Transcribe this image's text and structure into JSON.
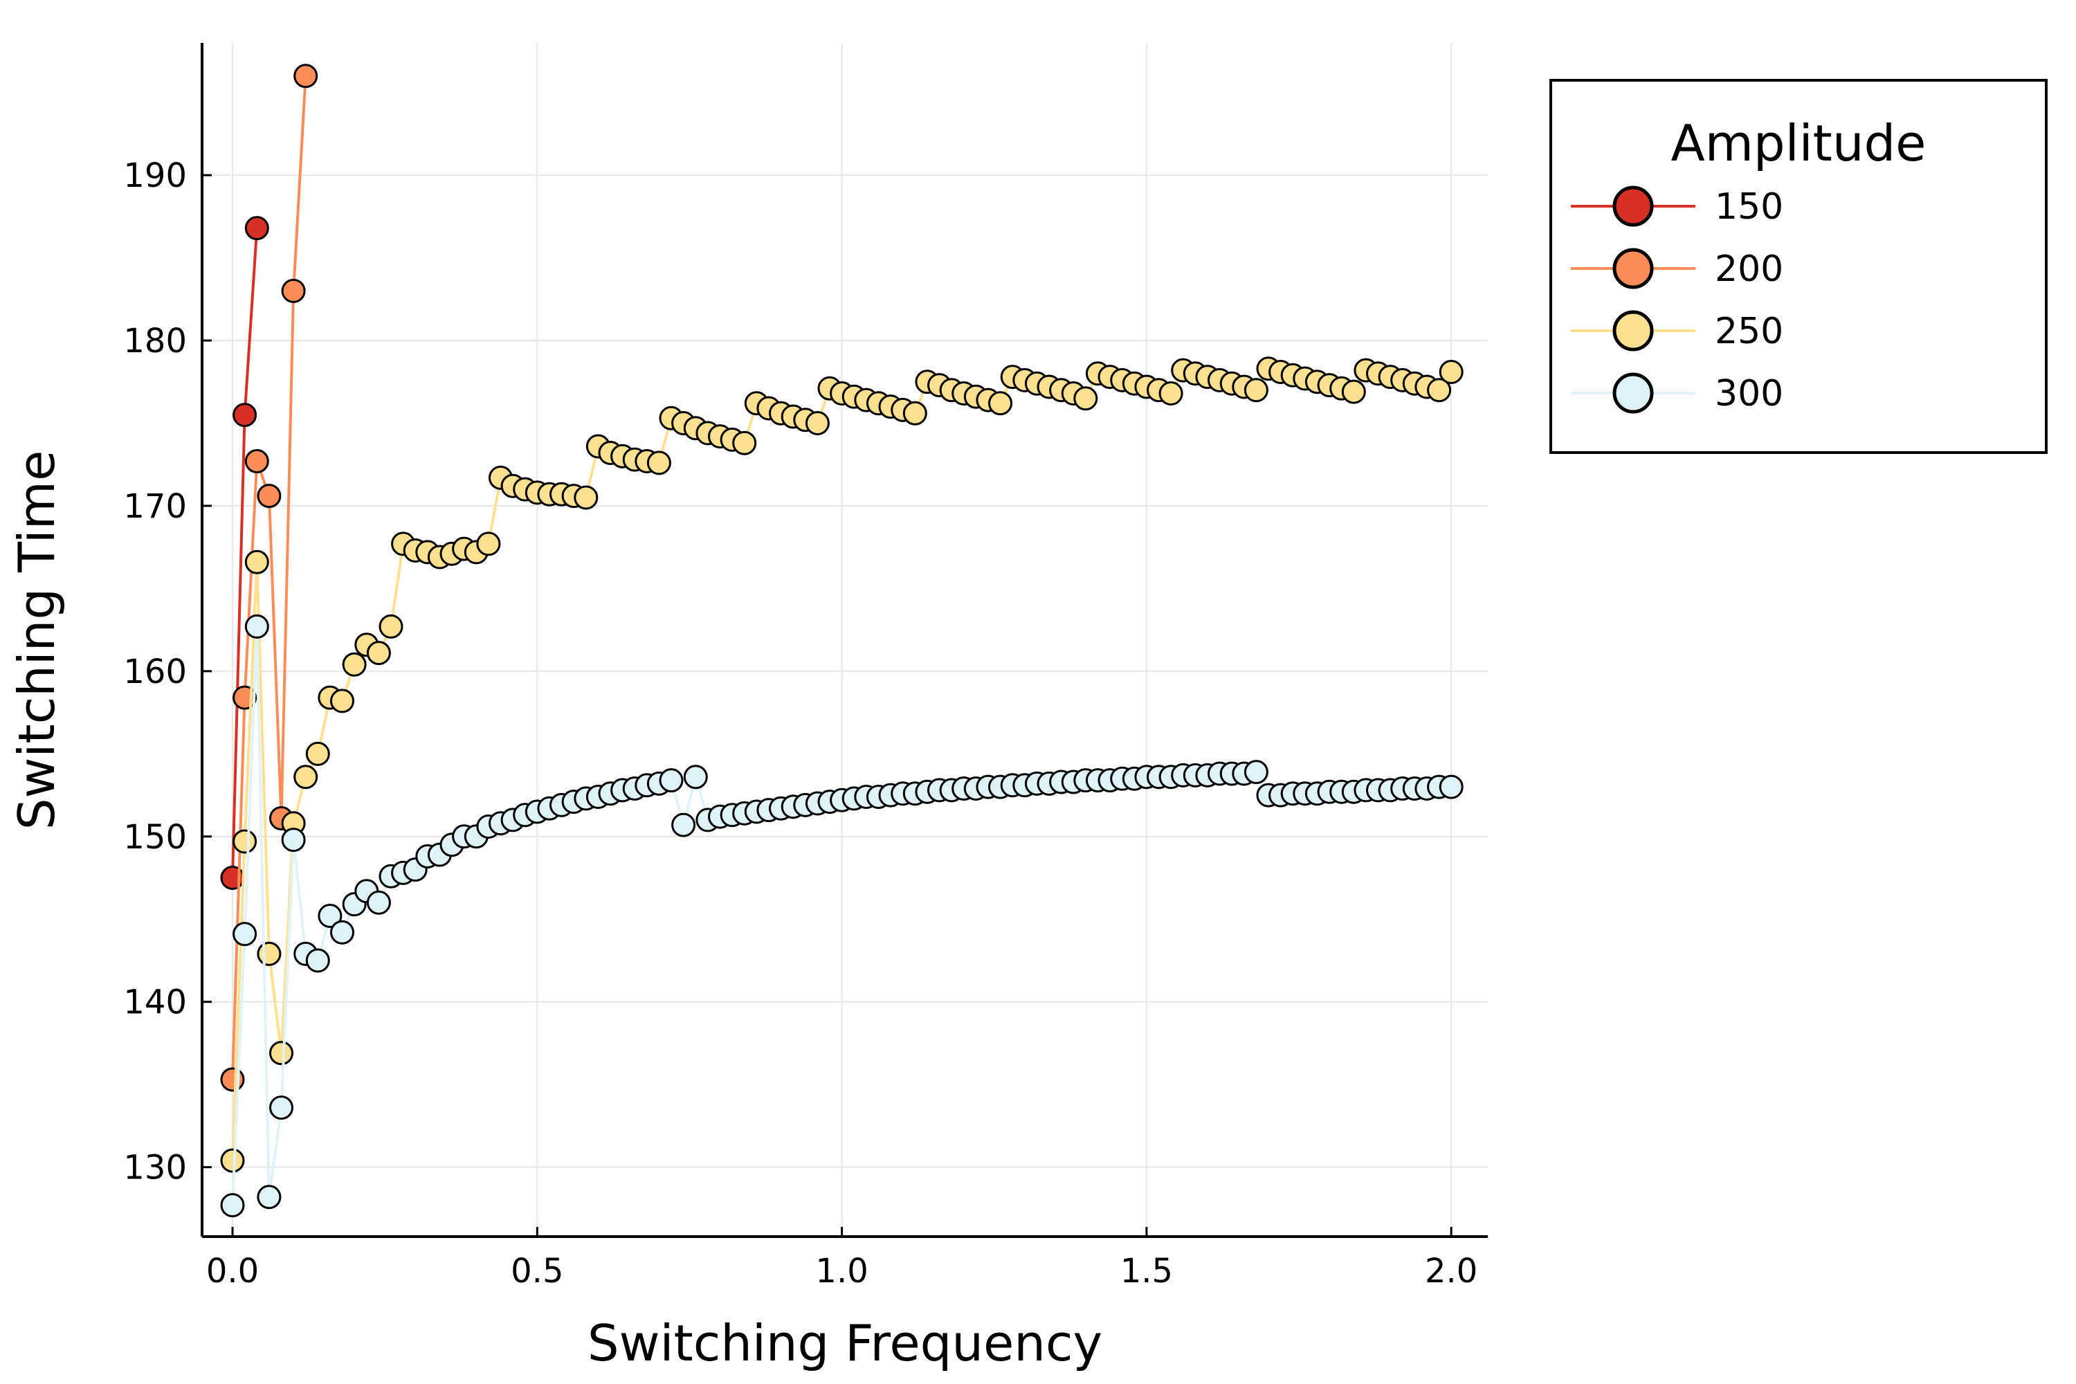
{
  "chart_data": {
    "type": "scatter",
    "xlabel": "Switching Frequency",
    "ylabel": "Switching Time",
    "xlim": [
      -0.05,
      2.06
    ],
    "ylim": [
      125.8,
      198
    ],
    "xticks": [
      0.0,
      0.5,
      1.0,
      1.5,
      2.0
    ],
    "xtick_labels": [
      "0.0",
      "0.5",
      "1.0",
      "1.5",
      "2.0"
    ],
    "yticks": [
      130,
      140,
      150,
      160,
      170,
      180,
      190
    ],
    "ytick_labels": [
      "130",
      "140",
      "150",
      "160",
      "170",
      "180",
      "190"
    ],
    "grid": true,
    "legend": {
      "title": "Amplitude",
      "placement": "outside-top-right"
    },
    "series": [
      {
        "name": "150",
        "color": "#d73027",
        "x": [
          0.0,
          0.02,
          0.04
        ],
        "y": [
          147.5,
          175.5,
          186.8
        ]
      },
      {
        "name": "200",
        "color": "#fc8d59",
        "x": [
          0.0,
          0.02,
          0.04,
          0.06,
          0.08,
          0.1,
          0.12
        ],
        "y": [
          135.3,
          158.4,
          172.7,
          170.6,
          151.1,
          183.0,
          196.0
        ]
      },
      {
        "name": "250",
        "color": "#fee090",
        "x": [
          0.0,
          0.02,
          0.04,
          0.06,
          0.08,
          0.1,
          0.12,
          0.14,
          0.16,
          0.18,
          0.2,
          0.22,
          0.24,
          0.26,
          0.28,
          0.3,
          0.32,
          0.34,
          0.36,
          0.38,
          0.4,
          0.42,
          0.44,
          0.46,
          0.48,
          0.5,
          0.52,
          0.54,
          0.56,
          0.58,
          0.6,
          0.62,
          0.64,
          0.66,
          0.68,
          0.7,
          0.72,
          0.74,
          0.76,
          0.78,
          0.8,
          0.82,
          0.84,
          0.86,
          0.88,
          0.9,
          0.92,
          0.94,
          0.96,
          0.98,
          1.0,
          1.02,
          1.04,
          1.06,
          1.08,
          1.1,
          1.12,
          1.14,
          1.16,
          1.18,
          1.2,
          1.22,
          1.24,
          1.26,
          1.28,
          1.3,
          1.32,
          1.34,
          1.36,
          1.38,
          1.4,
          1.42,
          1.44,
          1.46,
          1.48,
          1.5,
          1.52,
          1.54,
          1.56,
          1.58,
          1.6,
          1.62,
          1.64,
          1.66,
          1.68,
          1.7,
          1.72,
          1.74,
          1.76,
          1.78,
          1.8,
          1.82,
          1.84,
          1.86,
          1.88,
          1.9,
          1.92,
          1.94,
          1.96,
          1.98,
          2.0
        ],
        "y": [
          130.4,
          149.7,
          166.6,
          142.9,
          136.9,
          150.8,
          153.6,
          155.0,
          158.4,
          158.2,
          160.4,
          161.6,
          161.1,
          162.7,
          167.7,
          167.3,
          167.2,
          166.9,
          167.1,
          167.4,
          167.2,
          167.7,
          171.7,
          171.2,
          171.0,
          170.8,
          170.7,
          170.7,
          170.6,
          170.5,
          173.6,
          173.2,
          173.0,
          172.8,
          172.7,
          172.6,
          175.3,
          175.0,
          174.7,
          174.4,
          174.2,
          174.0,
          173.8,
          176.2,
          175.9,
          175.6,
          175.4,
          175.2,
          175.0,
          177.1,
          176.8,
          176.6,
          176.4,
          176.2,
          176.0,
          175.8,
          175.6,
          177.5,
          177.3,
          177.0,
          176.8,
          176.6,
          176.4,
          176.2,
          177.8,
          177.6,
          177.4,
          177.2,
          177.0,
          176.8,
          176.5,
          178.0,
          177.8,
          177.6,
          177.4,
          177.2,
          177.0,
          176.8,
          178.2,
          178.0,
          177.8,
          177.6,
          177.4,
          177.2,
          177.0,
          178.3,
          178.1,
          177.9,
          177.7,
          177.5,
          177.3,
          177.1,
          176.9,
          178.2,
          178.0,
          177.8,
          177.6,
          177.4,
          177.2,
          177.0,
          178.1
        ]
      },
      {
        "name": "300",
        "color": "#e0f3f8",
        "x": [
          0.0,
          0.02,
          0.04,
          0.06,
          0.08,
          0.1,
          0.12,
          0.14,
          0.16,
          0.18,
          0.2,
          0.22,
          0.24,
          0.26,
          0.28,
          0.3,
          0.32,
          0.34,
          0.36,
          0.38,
          0.4,
          0.42,
          0.44,
          0.46,
          0.48,
          0.5,
          0.52,
          0.54,
          0.56,
          0.58,
          0.6,
          0.62,
          0.64,
          0.66,
          0.68,
          0.7,
          0.72,
          0.74,
          0.76,
          0.78,
          0.8,
          0.82,
          0.84,
          0.86,
          0.88,
          0.9,
          0.92,
          0.94,
          0.96,
          0.98,
          1.0,
          1.02,
          1.04,
          1.06,
          1.08,
          1.1,
          1.12,
          1.14,
          1.16,
          1.18,
          1.2,
          1.22,
          1.24,
          1.26,
          1.28,
          1.3,
          1.32,
          1.34,
          1.36,
          1.38,
          1.4,
          1.42,
          1.44,
          1.46,
          1.48,
          1.5,
          1.52,
          1.54,
          1.56,
          1.58,
          1.6,
          1.62,
          1.64,
          1.66,
          1.68,
          1.7,
          1.72,
          1.74,
          1.76,
          1.78,
          1.8,
          1.82,
          1.84,
          1.86,
          1.88,
          1.9,
          1.92,
          1.94,
          1.96,
          1.98,
          2.0
        ],
        "y": [
          127.7,
          144.1,
          162.7,
          128.2,
          133.6,
          149.8,
          142.9,
          142.5,
          145.2,
          144.2,
          145.9,
          146.7,
          146.0,
          147.6,
          147.8,
          148.0,
          148.8,
          148.9,
          149.5,
          150.0,
          150.0,
          150.6,
          150.8,
          151.0,
          151.3,
          151.5,
          151.7,
          151.9,
          152.1,
          152.3,
          152.4,
          152.6,
          152.8,
          152.9,
          153.1,
          153.2,
          153.4,
          150.7,
          153.6,
          151.0,
          151.2,
          151.3,
          151.4,
          151.5,
          151.6,
          151.7,
          151.8,
          151.9,
          152.0,
          152.1,
          152.2,
          152.3,
          152.4,
          152.4,
          152.5,
          152.6,
          152.6,
          152.7,
          152.8,
          152.8,
          152.9,
          152.9,
          153.0,
          153.0,
          153.1,
          153.1,
          153.2,
          153.2,
          153.3,
          153.3,
          153.4,
          153.4,
          153.4,
          153.5,
          153.5,
          153.6,
          153.6,
          153.6,
          153.7,
          153.7,
          153.7,
          153.8,
          153.8,
          153.8,
          153.9,
          152.5,
          152.5,
          152.6,
          152.6,
          152.6,
          152.7,
          152.7,
          152.7,
          152.8,
          152.8,
          152.8,
          152.9,
          152.9,
          152.9,
          153.0,
          153.0
        ]
      }
    ]
  }
}
